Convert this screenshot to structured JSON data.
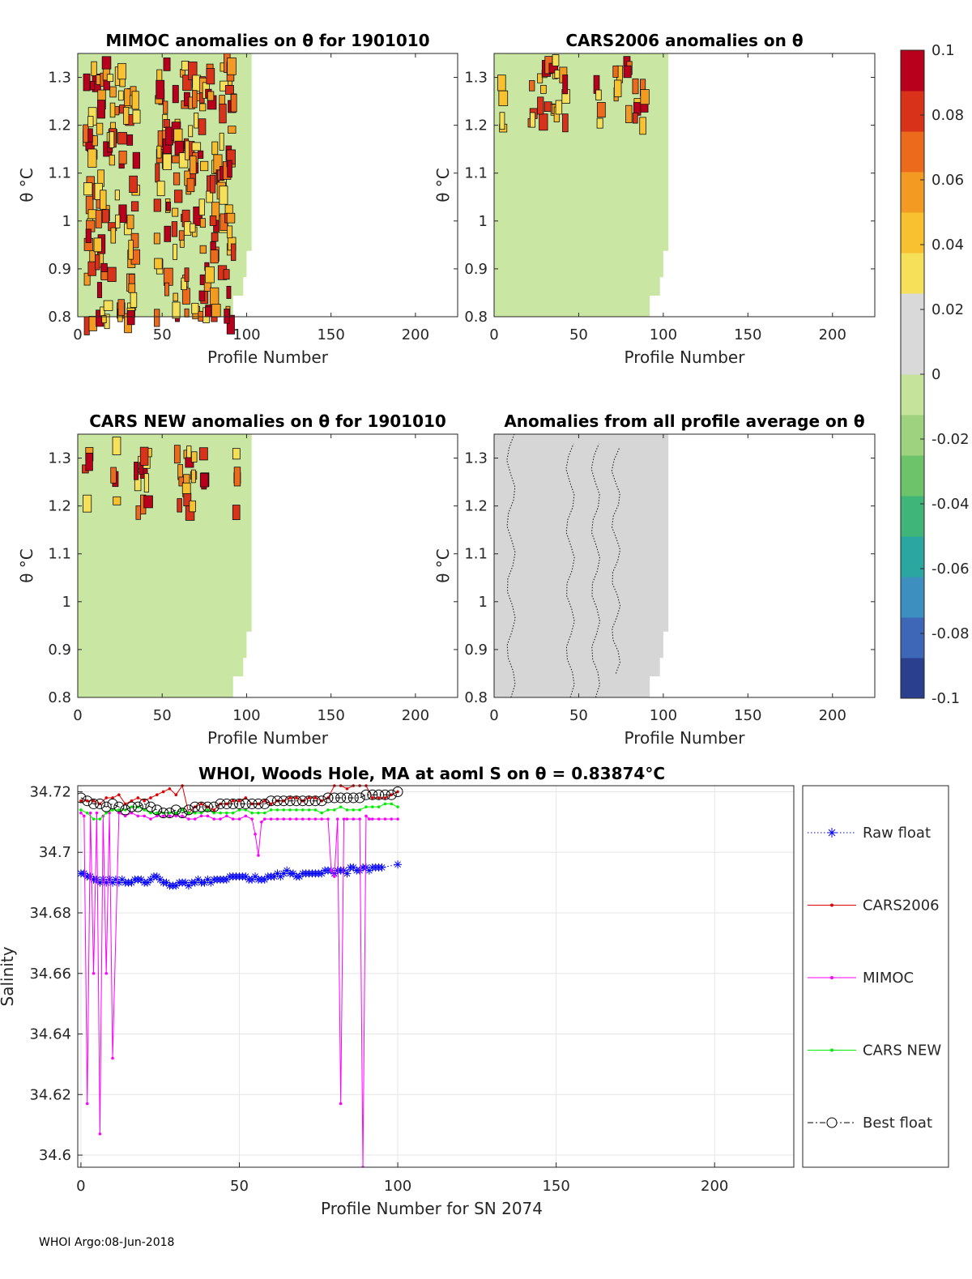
{
  "figure": {
    "footer": "WHOI Argo:08-Jun-2018"
  },
  "panels": [
    {
      "key": "p1",
      "title": "MIMOC anomalies on θ  for 1901010",
      "xlabel": "Profile Number",
      "ylabel": "θ °C",
      "xticks": [
        0,
        50,
        100,
        150,
        200
      ],
      "yticks": [
        0.8,
        0.9,
        1,
        1.1,
        1.2,
        1.3
      ],
      "xlim": [
        0,
        225
      ],
      "ylim": [
        0.8,
        1.35
      ]
    },
    {
      "key": "p2",
      "title": "CARS2006 anomalies on θ",
      "xlabel": "Profile Number",
      "ylabel": "θ °C",
      "xticks": [
        0,
        50,
        100,
        150,
        200
      ],
      "yticks": [
        0.8,
        0.9,
        1,
        1.1,
        1.2,
        1.3
      ],
      "xlim": [
        0,
        225
      ],
      "ylim": [
        0.8,
        1.35
      ]
    },
    {
      "key": "p3",
      "title": "CARS NEW anomalies on θ for 1901010",
      "xlabel": "Profile Number",
      "ylabel": "θ °C",
      "xticks": [
        0,
        50,
        100,
        150,
        200
      ],
      "yticks": [
        0.8,
        0.9,
        1,
        1.1,
        1.2,
        1.3
      ],
      "xlim": [
        0,
        225
      ],
      "ylim": [
        0.8,
        1.35
      ]
    },
    {
      "key": "p4",
      "title": "Anomalies from all profile average on θ",
      "xlabel": "Profile Number",
      "ylabel": "θ °C",
      "xticks": [
        0,
        50,
        100,
        150,
        200
      ],
      "yticks": [
        0.8,
        0.9,
        1,
        1.1,
        1.2,
        1.3
      ],
      "xlim": [
        0,
        225
      ],
      "ylim": [
        0.8,
        1.35
      ]
    }
  ],
  "colorbar": {
    "ticks": [
      "0.1",
      "0.08",
      "0.06",
      "0.04",
      "0.02",
      "0",
      "-0.02",
      "-0.04",
      "-0.06",
      "-0.08",
      "-0.1"
    ],
    "clim": [
      -0.1,
      0.1
    ],
    "colors": [
      "#2b3f8f",
      "#3f67b8",
      "#3d8fbf",
      "#2ca7a0",
      "#3fb57a",
      "#6cc36a",
      "#9fd27f",
      "#c5e39a",
      "#d9d9d9",
      "#d9d9d9",
      "#f6e05a",
      "#f7c12f",
      "#f39a23",
      "#ec6a1c",
      "#d9321a",
      "#b8001c"
    ]
  },
  "chart_data": {
    "type": "line",
    "title": "WHOI, Woods Hole, MA at aoml S on θ = 0.83874°C",
    "xlabel": "Profile Number for SN 2074",
    "ylabel": "Salinity",
    "xlim": [
      -1,
      225
    ],
    "ylim": [
      34.596,
      34.722
    ],
    "xticks": [
      0,
      50,
      100,
      150,
      200
    ],
    "yticks": [
      34.6,
      34.62,
      34.64,
      34.66,
      34.68,
      34.7,
      34.72
    ],
    "legend_position": "outside-right",
    "series": [
      {
        "name": "Raw float",
        "color": "#0000ff",
        "marker": "star",
        "linestyle": "dotted",
        "x": [
          0,
          1,
          2,
          3,
          4,
          5,
          6,
          7,
          8,
          9,
          10,
          11,
          12,
          13,
          14,
          15,
          16,
          17,
          18,
          19,
          20,
          21,
          22,
          23,
          24,
          25,
          26,
          27,
          28,
          29,
          30,
          31,
          32,
          33,
          34,
          35,
          36,
          37,
          38,
          39,
          40,
          41,
          42,
          43,
          44,
          45,
          46,
          47,
          48,
          49,
          50,
          51,
          52,
          53,
          54,
          55,
          56,
          57,
          58,
          59,
          60,
          61,
          62,
          63,
          64,
          65,
          66,
          67,
          68,
          69,
          70,
          71,
          72,
          73,
          74,
          75,
          76,
          77,
          78,
          79,
          80,
          81,
          82,
          83,
          84,
          85,
          86,
          87,
          88,
          89,
          90,
          91,
          92,
          93,
          94,
          95,
          100
        ],
        "y": [
          34.693,
          34.693,
          34.692,
          34.692,
          34.691,
          34.691,
          34.69,
          34.691,
          34.69,
          34.691,
          34.69,
          34.691,
          34.69,
          34.691,
          34.69,
          34.69,
          34.69,
          34.691,
          34.691,
          34.691,
          34.69,
          34.69,
          34.691,
          34.692,
          34.692,
          34.691,
          34.69,
          34.69,
          34.689,
          34.689,
          34.689,
          34.69,
          34.69,
          34.69,
          34.689,
          34.69,
          34.69,
          34.691,
          34.69,
          34.69,
          34.691,
          34.69,
          34.691,
          34.691,
          34.691,
          34.691,
          34.691,
          34.692,
          34.692,
          34.692,
          34.692,
          34.692,
          34.692,
          34.691,
          34.691,
          34.692,
          34.691,
          34.691,
          34.691,
          34.692,
          34.692,
          34.692,
          34.693,
          34.692,
          34.693,
          34.694,
          34.693,
          34.693,
          34.692,
          34.692,
          34.693,
          34.693,
          34.693,
          34.693,
          34.693,
          34.693,
          34.693,
          34.694,
          34.694,
          34.694,
          34.693,
          34.694,
          34.694,
          34.694,
          34.693,
          34.695,
          34.695,
          34.694,
          34.694,
          34.695,
          34.695,
          34.694,
          34.695,
          34.695,
          34.695,
          34.695,
          34.696
        ]
      },
      {
        "name": "CARS2006",
        "color": "#e00000",
        "marker": "dot",
        "linestyle": "solid",
        "x": [
          0,
          2,
          4,
          6,
          8,
          10,
          12,
          14,
          16,
          18,
          20,
          22,
          24,
          26,
          28,
          30,
          32,
          34,
          36,
          38,
          40,
          42,
          44,
          46,
          48,
          50,
          52,
          54,
          56,
          58,
          60,
          62,
          64,
          66,
          68,
          70,
          72,
          74,
          76,
          78,
          80,
          82,
          84,
          86,
          88,
          90,
          92,
          94,
          96,
          98,
          100
        ],
        "y": [
          34.717,
          34.717,
          34.717,
          34.716,
          34.718,
          34.718,
          34.719,
          34.716,
          34.717,
          34.718,
          34.717,
          34.718,
          34.719,
          34.72,
          34.721,
          34.719,
          34.722,
          34.713,
          34.715,
          34.716,
          34.715,
          34.714,
          34.716,
          34.716,
          34.717,
          34.717,
          34.718,
          34.716,
          34.716,
          34.717,
          34.716,
          34.717,
          34.717,
          34.718,
          34.718,
          34.717,
          34.718,
          34.718,
          34.717,
          34.718,
          34.722,
          34.722,
          34.721,
          34.722,
          34.722,
          34.722,
          34.718,
          34.718,
          34.718,
          34.719,
          34.72
        ]
      },
      {
        "name": "MIMOC",
        "color": "#ff00ff",
        "marker": "dot",
        "linestyle": "solid",
        "x": [
          0,
          1,
          2,
          3,
          4,
          5,
          6,
          7,
          8,
          9,
          10,
          12,
          14,
          16,
          18,
          20,
          22,
          24,
          26,
          28,
          30,
          32,
          34,
          36,
          38,
          40,
          42,
          44,
          46,
          48,
          50,
          52,
          54,
          55,
          56,
          57,
          58,
          60,
          62,
          64,
          66,
          68,
          70,
          72,
          74,
          76,
          78,
          79,
          80,
          81,
          82,
          83,
          84,
          86,
          88,
          89,
          90,
          91,
          92,
          94,
          96,
          98,
          100
        ],
        "y": [
          34.713,
          34.712,
          34.617,
          34.713,
          34.66,
          34.713,
          34.607,
          34.712,
          34.66,
          34.713,
          34.632,
          34.713,
          34.712,
          34.713,
          34.712,
          34.712,
          34.711,
          34.712,
          34.712,
          34.712,
          34.712,
          34.712,
          34.711,
          34.711,
          34.712,
          34.712,
          34.711,
          34.711,
          34.712,
          34.711,
          34.711,
          34.712,
          34.711,
          34.706,
          34.699,
          34.71,
          34.711,
          34.711,
          34.711,
          34.711,
          34.711,
          34.711,
          34.711,
          34.711,
          34.711,
          34.711,
          34.711,
          34.694,
          34.692,
          34.711,
          34.617,
          34.711,
          34.711,
          34.711,
          34.711,
          34.596,
          34.712,
          34.711,
          34.711,
          34.711,
          34.711,
          34.711,
          34.711
        ]
      },
      {
        "name": "CARS NEW",
        "color": "#00ee00",
        "marker": "dot",
        "linestyle": "solid",
        "x": [
          0,
          2,
          4,
          6,
          8,
          10,
          12,
          14,
          16,
          18,
          20,
          22,
          24,
          26,
          28,
          30,
          32,
          34,
          36,
          38,
          40,
          42,
          44,
          46,
          48,
          50,
          52,
          54,
          56,
          58,
          60,
          62,
          64,
          66,
          68,
          70,
          72,
          74,
          76,
          78,
          80,
          82,
          84,
          86,
          88,
          90,
          92,
          94,
          96,
          98,
          100
        ],
        "y": [
          34.714,
          34.713,
          34.711,
          34.711,
          34.713,
          34.714,
          34.714,
          34.714,
          34.715,
          34.715,
          34.714,
          34.713,
          34.713,
          34.713,
          34.713,
          34.713,
          34.714,
          34.713,
          34.713,
          34.713,
          34.714,
          34.713,
          34.713,
          34.713,
          34.713,
          34.714,
          34.714,
          34.713,
          34.713,
          34.713,
          34.714,
          34.714,
          34.714,
          34.714,
          34.714,
          34.714,
          34.714,
          34.714,
          34.713,
          34.714,
          34.714,
          34.715,
          34.714,
          34.714,
          34.714,
          34.715,
          34.715,
          34.715,
          34.716,
          34.716,
          34.715
        ]
      },
      {
        "name": "Best float",
        "color": "#000000",
        "marker": "circle",
        "linestyle": "dashdot",
        "x": [
          0,
          2,
          4,
          6,
          8,
          10,
          12,
          14,
          16,
          18,
          20,
          22,
          24,
          26,
          28,
          30,
          32,
          34,
          36,
          38,
          40,
          42,
          44,
          46,
          48,
          50,
          52,
          54,
          56,
          58,
          60,
          62,
          64,
          66,
          68,
          70,
          72,
          74,
          76,
          78,
          80,
          82,
          84,
          86,
          88,
          90,
          92,
          94,
          96,
          98,
          100
        ],
        "y": [
          34.718,
          34.717,
          34.716,
          34.716,
          34.715,
          34.716,
          34.715,
          34.714,
          34.715,
          34.715,
          34.716,
          34.715,
          34.714,
          34.713,
          34.713,
          34.714,
          34.713,
          34.714,
          34.715,
          34.715,
          34.715,
          34.715,
          34.716,
          34.716,
          34.716,
          34.716,
          34.716,
          34.716,
          34.716,
          34.716,
          34.717,
          34.717,
          34.717,
          34.717,
          34.717,
          34.717,
          34.717,
          34.717,
          34.717,
          34.718,
          34.718,
          34.718,
          34.718,
          34.718,
          34.718,
          34.719,
          34.719,
          34.719,
          34.719,
          34.719,
          34.72
        ]
      }
    ]
  }
}
